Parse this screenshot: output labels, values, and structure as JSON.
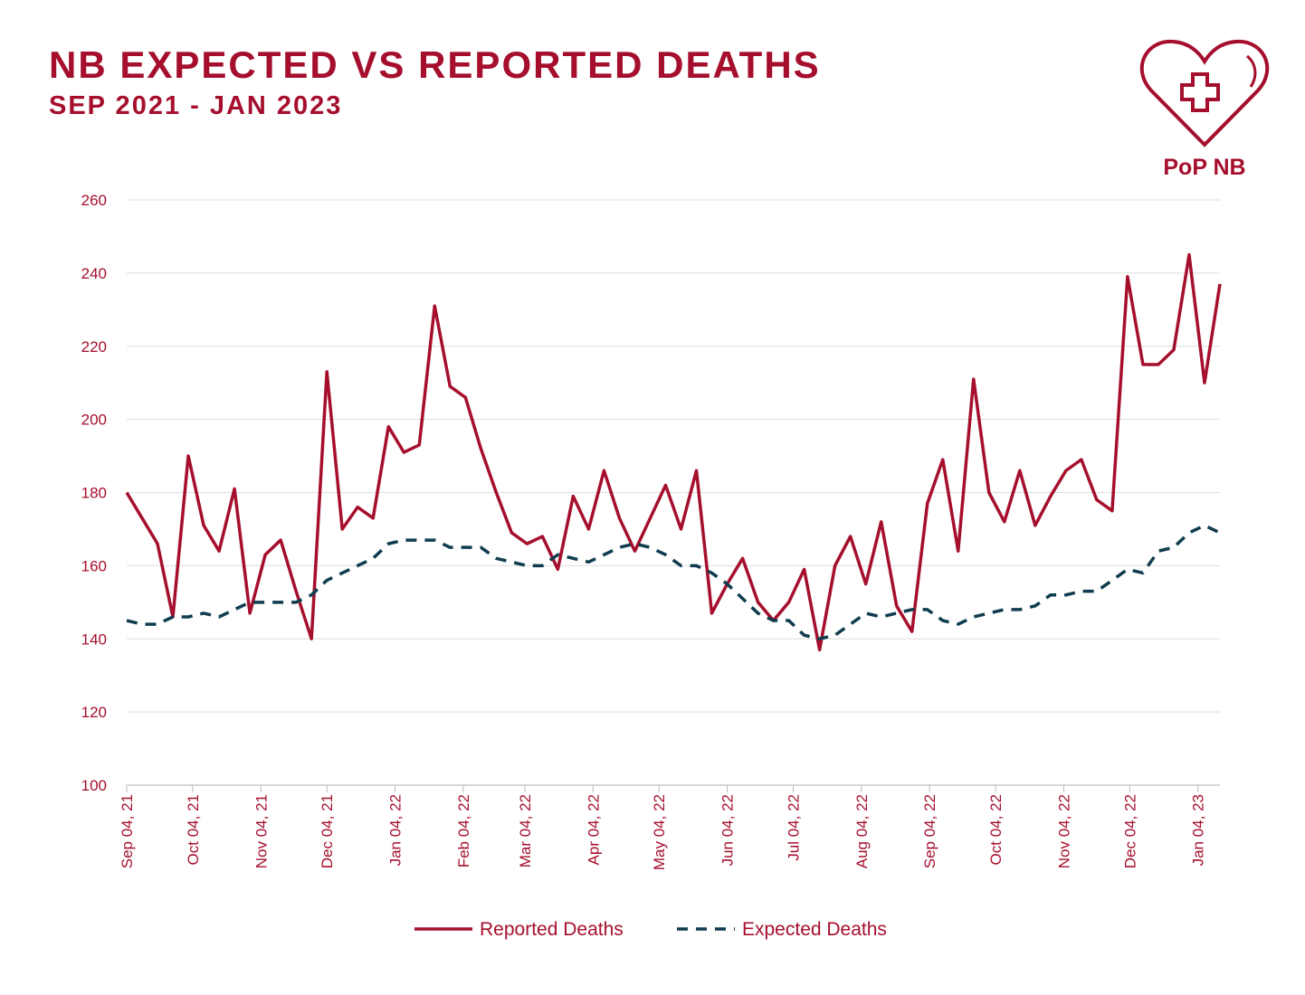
{
  "logo_text": "PoP NB",
  "chart_data": {
    "type": "line",
    "title": "NB EXPECTED VS REPORTED DEATHS",
    "subtitle": "SEP 2021 - JAN 2023",
    "x": [
      "2021-09-04",
      "2021-09-11",
      "2021-09-18",
      "2021-09-25",
      "2021-10-02",
      "2021-10-09",
      "2021-10-16",
      "2021-10-23",
      "2021-10-30",
      "2021-11-06",
      "2021-11-13",
      "2021-11-20",
      "2021-11-27",
      "2021-12-04",
      "2021-12-11",
      "2021-12-18",
      "2021-12-25",
      "2022-01-01",
      "2022-01-08",
      "2022-01-15",
      "2022-01-22",
      "2022-01-29",
      "2022-02-05",
      "2022-02-12",
      "2022-02-19",
      "2022-02-26",
      "2022-03-05",
      "2022-03-12",
      "2022-03-19",
      "2022-03-26",
      "2022-04-02",
      "2022-04-09",
      "2022-04-16",
      "2022-04-23",
      "2022-04-30",
      "2022-05-07",
      "2022-05-14",
      "2022-05-21",
      "2022-05-28",
      "2022-06-04",
      "2022-06-11",
      "2022-06-18",
      "2022-06-25",
      "2022-07-02",
      "2022-07-09",
      "2022-07-16",
      "2022-07-23",
      "2022-07-30",
      "2022-08-06",
      "2022-08-13",
      "2022-08-20",
      "2022-08-27",
      "2022-09-03",
      "2022-09-10",
      "2022-09-17",
      "2022-09-24",
      "2022-10-01",
      "2022-10-08",
      "2022-10-15",
      "2022-10-22",
      "2022-10-29",
      "2022-11-05",
      "2022-11-12",
      "2022-11-19",
      "2022-11-26",
      "2022-12-03",
      "2022-12-10",
      "2022-12-17",
      "2022-12-24",
      "2022-12-31",
      "2023-01-07",
      "2023-01-14"
    ],
    "series": [
      {
        "name": "Reported Deaths",
        "color": "#a50f2d",
        "style": "solid",
        "values": [
          180,
          173,
          166,
          146,
          190,
          171,
          164,
          181,
          147,
          163,
          167,
          153,
          140,
          213,
          170,
          176,
          173,
          198,
          191,
          193,
          231,
          209,
          206,
          192,
          180,
          169,
          166,
          168,
          159,
          179,
          170,
          186,
          173,
          164,
          173,
          182,
          170,
          186,
          147,
          155,
          162,
          150,
          145,
          150,
          159,
          137,
          160,
          168,
          155,
          172,
          149,
          142,
          177,
          189,
          164,
          211,
          180,
          172,
          186,
          171,
          179,
          186,
          189,
          178,
          175,
          239,
          215,
          215,
          219,
          245,
          210,
          237
        ]
      },
      {
        "name": "Expected Deaths",
        "color": "#0f3d4f",
        "style": "dashed",
        "values": [
          145,
          144,
          144,
          146,
          146,
          147,
          146,
          148,
          150,
          150,
          150,
          150,
          152,
          156,
          158,
          160,
          162,
          166,
          167,
          167,
          167,
          165,
          165,
          165,
          162,
          161,
          160,
          160,
          163,
          162,
          161,
          163,
          165,
          166,
          165,
          163,
          160,
          160,
          158,
          155,
          151,
          147,
          145,
          145,
          141,
          140,
          141,
          144,
          147,
          146,
          147,
          148,
          148,
          145,
          144,
          146,
          147,
          148,
          148,
          149,
          152,
          152,
          153,
          153,
          156,
          159,
          158,
          164,
          165,
          169,
          171,
          169
        ]
      }
    ],
    "xlim": [
      "2021-09-04",
      "2023-01-14"
    ],
    "xticks": [
      {
        "value": "2021-09-04",
        "label": "Sep 04, 21"
      },
      {
        "value": "2021-10-04",
        "label": "Oct 04, 21"
      },
      {
        "value": "2021-11-04",
        "label": "Nov 04, 21"
      },
      {
        "value": "2021-12-04",
        "label": "Dec 04, 21"
      },
      {
        "value": "2022-01-04",
        "label": "Jan 04, 22"
      },
      {
        "value": "2022-02-04",
        "label": "Feb 04, 22"
      },
      {
        "value": "2022-03-04",
        "label": "Mar 04, 22"
      },
      {
        "value": "2022-04-04",
        "label": "Apr 04, 22"
      },
      {
        "value": "2022-05-04",
        "label": "May 04, 22"
      },
      {
        "value": "2022-06-04",
        "label": "Jun 04, 22"
      },
      {
        "value": "2022-07-04",
        "label": "Jul 04, 22"
      },
      {
        "value": "2022-08-04",
        "label": "Aug 04, 22"
      },
      {
        "value": "2022-09-04",
        "label": "Sep 04, 22"
      },
      {
        "value": "2022-10-04",
        "label": "Oct 04, 22"
      },
      {
        "value": "2022-11-04",
        "label": "Nov 04, 22"
      },
      {
        "value": "2022-12-04",
        "label": "Dec 04, 22"
      },
      {
        "value": "2023-01-04",
        "label": "Jan 04, 23"
      }
    ],
    "ylim": [
      100,
      260
    ],
    "yticks": [
      100,
      120,
      140,
      160,
      180,
      200,
      220,
      240,
      260
    ],
    "grid": true,
    "legend": "bottom"
  }
}
